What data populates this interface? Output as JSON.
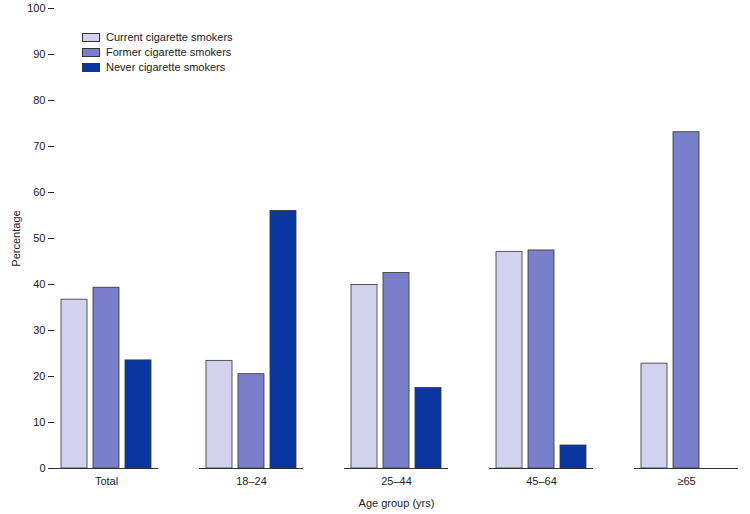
{
  "chart_data": {
    "type": "bar",
    "x_label": "Age group (yrs)",
    "y_label": "Percentage",
    "categories": [
      "Total",
      "18–24",
      "25–44",
      "45–64",
      "≥65"
    ],
    "series": [
      {
        "name": "Current cigarette smokers",
        "color": "#d2d2ee",
        "values": [
          36.7,
          23.4,
          39.9,
          47.1,
          22.8
        ]
      },
      {
        "name": "Former cigarette smokers",
        "color": "#7a7fcc",
        "values": [
          39.3,
          20.5,
          42.5,
          47.4,
          73.1
        ]
      },
      {
        "name": "Never cigarette smokers",
        "color": "#0a36a0",
        "values": [
          23.5,
          56.0,
          17.5,
          5.0,
          null
        ]
      }
    ],
    "ylim": [
      0,
      100
    ],
    "yticks": [
      0,
      10,
      20,
      30,
      40,
      50,
      60,
      70,
      80,
      90,
      100
    ],
    "grid": false,
    "legend": "top-left"
  }
}
